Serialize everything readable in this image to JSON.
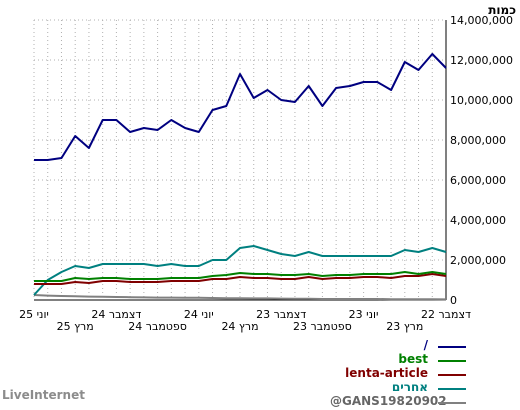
{
  "chart_data": {
    "type": "line",
    "ylabel": "כמות",
    "ylim": [
      0,
      14000000
    ],
    "yticks": [
      "0",
      "2,000,000",
      "4,000,000",
      "6,000,000",
      "8,000,000",
      "10,000,000",
      "12,000,000",
      "14,000,000"
    ],
    "yticks_values": [
      0,
      2000000,
      4000000,
      6000000,
      8000000,
      10000000,
      12000000,
      14000000
    ],
    "x_order": "right-to-left",
    "xticks_top": [
      {
        "label": "דצמבר 22",
        "index": 0
      },
      {
        "label": "יוני 23",
        "index": 6
      },
      {
        "label": "דצמבר 23",
        "index": 12
      },
      {
        "label": "יוני 24",
        "index": 18
      },
      {
        "label": "דצמבר 24",
        "index": 24
      },
      {
        "label": "יוני 25",
        "index": 30
      }
    ],
    "xticks_bottom": [
      {
        "label": "מרץ 23",
        "index": 3
      },
      {
        "label": "ספטמבר 23",
        "index": 9
      },
      {
        "label": "מרץ 24",
        "index": 15
      },
      {
        "label": "ספטמבר 24",
        "index": 21
      },
      {
        "label": "מרץ 25",
        "index": 27
      }
    ],
    "grid": true,
    "legend_position": "bottom",
    "series": [
      {
        "name": "/",
        "color": "#000080",
        "values": [
          11600000,
          12300000,
          11500000,
          11900000,
          10500000,
          10900000,
          10900000,
          10700000,
          10600000,
          9700000,
          10700000,
          9900000,
          10000000,
          10500000,
          10100000,
          11300000,
          9700000,
          9500000,
          8400000,
          8600000,
          9000000,
          8500000,
          8600000,
          8400000,
          9000000,
          9000000,
          7600000,
          8200000,
          7100000,
          7000000,
          7000000
        ]
      },
      {
        "name": "best",
        "color": "#008000",
        "values": [
          1300000,
          1400000,
          1300000,
          1400000,
          1300000,
          1300000,
          1300000,
          1250000,
          1250000,
          1200000,
          1300000,
          1250000,
          1250000,
          1300000,
          1300000,
          1350000,
          1250000,
          1200000,
          1100000,
          1100000,
          1100000,
          1050000,
          1050000,
          1050000,
          1100000,
          1100000,
          1050000,
          1100000,
          950000,
          950000,
          950000
        ]
      },
      {
        "name": "lenta-article",
        "color": "#800000",
        "values": [
          1200000,
          1300000,
          1200000,
          1200000,
          1100000,
          1150000,
          1150000,
          1100000,
          1100000,
          1050000,
          1150000,
          1050000,
          1050000,
          1100000,
          1100000,
          1150000,
          1050000,
          1050000,
          950000,
          950000,
          950000,
          900000,
          900000,
          900000,
          950000,
          950000,
          850000,
          900000,
          800000,
          800000,
          800000
        ]
      },
      {
        "name": "אחרים",
        "color": "#008080",
        "values": [
          2400000,
          2600000,
          2400000,
          2500000,
          2200000,
          2200000,
          2200000,
          2200000,
          2200000,
          2200000,
          2400000,
          2200000,
          2300000,
          2500000,
          2700000,
          2600000,
          2000000,
          2000000,
          1700000,
          1700000,
          1800000,
          1700000,
          1800000,
          1800000,
          1800000,
          1800000,
          1600000,
          1700000,
          1400000,
          1000000,
          250000
        ]
      },
      {
        "name": "@GANS19820902",
        "color": "#808080",
        "values": [
          30000,
          40000,
          40000,
          40000,
          40000,
          50000,
          50000,
          50000,
          50000,
          50000,
          60000,
          60000,
          70000,
          80000,
          80000,
          90000,
          90000,
          100000,
          110000,
          110000,
          120000,
          120000,
          130000,
          140000,
          150000,
          160000,
          170000,
          190000,
          200000,
          220000,
          250000
        ]
      }
    ]
  },
  "footer": {
    "left": "LiveInternet"
  }
}
